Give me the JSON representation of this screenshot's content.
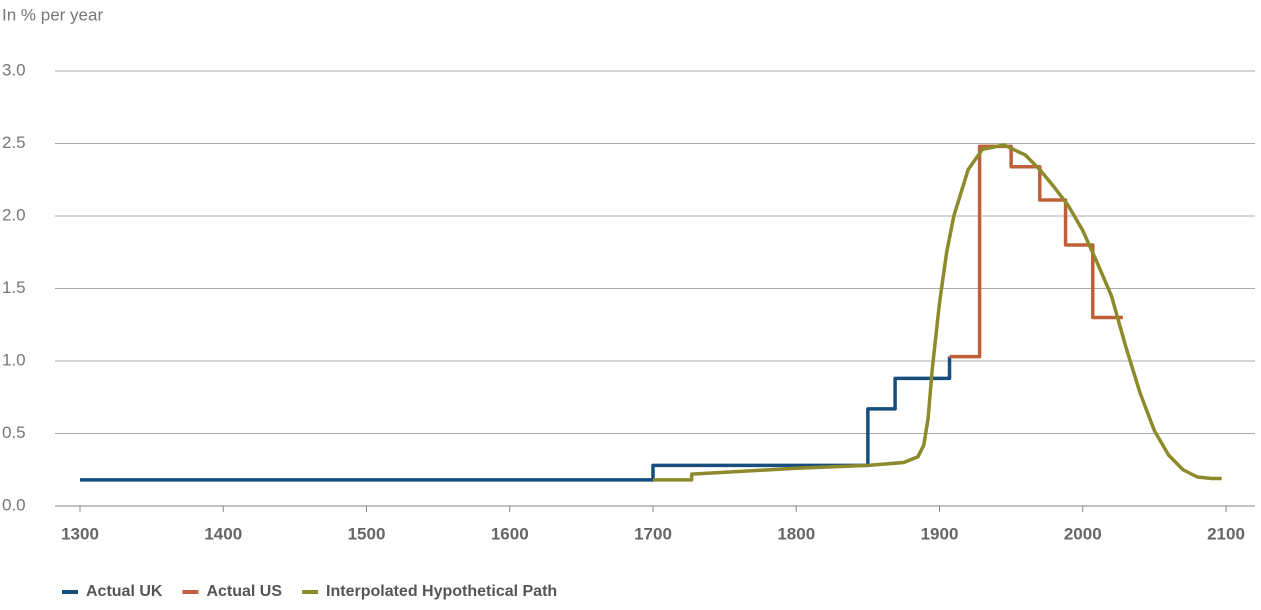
{
  "chart_data": {
    "type": "line",
    "ylabel": "In % per year",
    "xlim": [
      1300,
      2100
    ],
    "xticks": [
      1300,
      1400,
      1500,
      1600,
      1700,
      1800,
      1900,
      2000,
      2100
    ],
    "ylim": [
      0,
      3
    ],
    "yticks": [
      {
        "value": 0,
        "label": "0.0"
      },
      0.5,
      {
        "value": 1,
        "label": "1.0"
      },
      1.5,
      {
        "value": 2,
        "label": "2.0"
      },
      2.5,
      {
        "value": 3,
        "label": "3.0"
      }
    ],
    "grid": true,
    "legend": "bottom",
    "series": [
      {
        "name": "Actual UK",
        "color": "#164f7e",
        "step": "post",
        "x": [
          1300,
          1700,
          1850,
          1869,
          1907
        ],
        "values": [
          0.18,
          0.28,
          0.67,
          0.88,
          1.03
        ]
      },
      {
        "name": "Actual US",
        "color": "#c0603a",
        "step": "post",
        "x": [
          1907,
          1928,
          1950,
          1970,
          1988,
          2007,
          2028
        ],
        "values": [
          1.03,
          2.48,
          2.34,
          2.11,
          1.8,
          1.3,
          1.3
        ]
      },
      {
        "name": "Interpolated Hypothetical Path",
        "color": "#8c8a2a",
        "x": [
          1700,
          1727,
          1727,
          1800,
          1850,
          1875,
          1885,
          1889,
          1892,
          1895,
          1900,
          1905,
          1910,
          1920,
          1930,
          1945,
          1960,
          1970,
          1980,
          1990,
          2000,
          2010,
          2020,
          2030,
          2040,
          2050,
          2060,
          2070,
          2080,
          2090,
          2097
        ],
        "values": [
          0.18,
          0.18,
          0.22,
          0.26,
          0.28,
          0.3,
          0.34,
          0.42,
          0.6,
          0.95,
          1.4,
          1.75,
          2.0,
          2.32,
          2.46,
          2.49,
          2.42,
          2.32,
          2.2,
          2.07,
          1.9,
          1.68,
          1.45,
          1.1,
          0.78,
          0.52,
          0.35,
          0.25,
          0.2,
          0.19,
          0.19
        ]
      }
    ]
  }
}
